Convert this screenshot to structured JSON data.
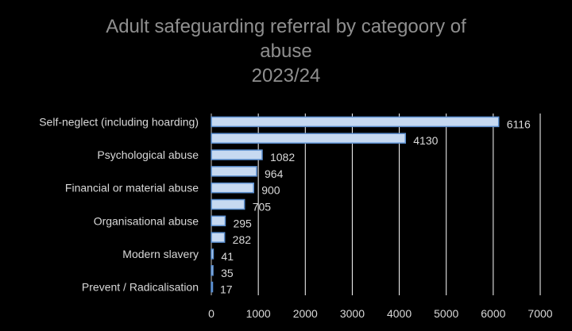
{
  "chart_data": {
    "type": "bar",
    "orientation": "horizontal",
    "title_lines": [
      "Adult safeguarding referral by categoory of",
      "abuse",
      "2023/24"
    ],
    "xlabel": "",
    "ylabel": "",
    "xlim": [
      0,
      7000
    ],
    "xticks": [
      0,
      1000,
      2000,
      3000,
      4000,
      5000,
      6000,
      7000
    ],
    "grid": "vertical",
    "categories": [
      "Self-neglect (including hoarding)",
      "",
      "Psychological abuse",
      "",
      "Financial or material abuse",
      "",
      "Organisational abuse",
      "",
      "Modern slavery",
      "",
      "Prevent / Radicalisation"
    ],
    "values": [
      6116,
      4130,
      1082,
      964,
      900,
      705,
      295,
      282,
      41,
      35,
      17
    ],
    "colors": {
      "background": "#000000",
      "bar_fill": "#c6d9f1",
      "bar_edge": "#5b8fd0",
      "text": "#d9d9d9",
      "title": "#8f8f8f",
      "grid": "#ffffff"
    }
  }
}
